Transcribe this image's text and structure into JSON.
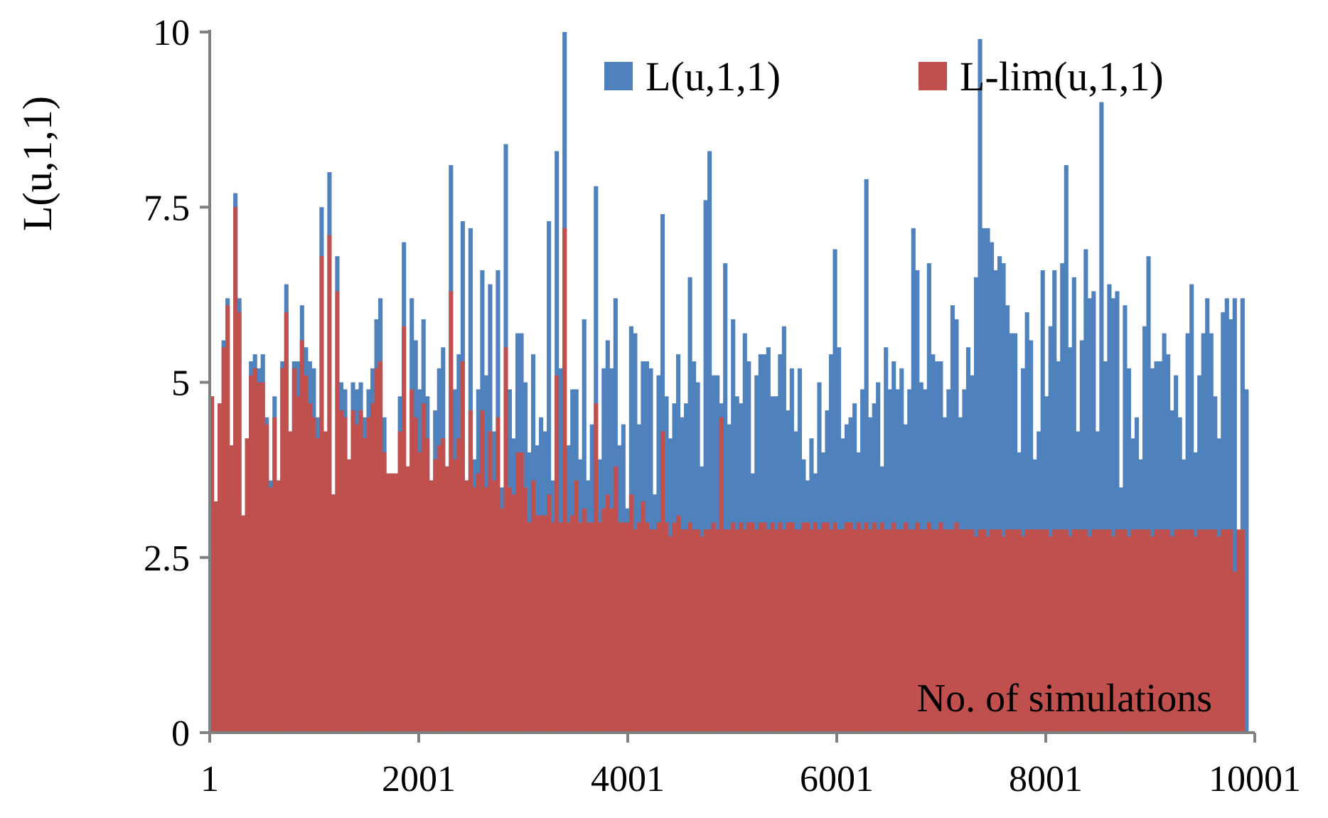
{
  "chart_data": {
    "type": "bar",
    "ylabel": "L(u,1,1)",
    "xlabel": "",
    "annotation": "No. of simulations",
    "ylim": [
      0,
      10
    ],
    "xlim": [
      1,
      10001
    ],
    "yticks": [
      "0",
      "2.5",
      "5",
      "7.5",
      "10"
    ],
    "xticks": [
      "1",
      "2001",
      "4001",
      "6001",
      "8001",
      "10001"
    ],
    "legend_position": "top-right",
    "bar_step": 25,
    "colors": {
      "L": "#4f81bd",
      "L_lim": "#c0504d",
      "axis": "#808080"
    },
    "series": [
      {
        "name": "L(u,1,1)",
        "color": "#4f81bd",
        "values": [
          4.8,
          3.3,
          4.7,
          5.6,
          6.2,
          4.1,
          7.7,
          6.2,
          3.1,
          4.2,
          5.3,
          5.4,
          5.2,
          5.4,
          4.5,
          3.6,
          4.8,
          3.6,
          5.3,
          6.4,
          4.3,
          5.3,
          5.3,
          6.1,
          5.5,
          5.3,
          5.2,
          4.5,
          7.5,
          4.3,
          8.0,
          3.4,
          6.8,
          5.0,
          4.9,
          3.9,
          5.0,
          4.9,
          5.0,
          4.5,
          4.9,
          5.2,
          5.9,
          6.2,
          4.5,
          3.7,
          3.7,
          3.7,
          4.8,
          7.0,
          3.8,
          6.2,
          5.6,
          4.9,
          5.9,
          4.8,
          3.6,
          4.6,
          5.2,
          5.5,
          3.8,
          8.1,
          4.9,
          5.4,
          7.3,
          3.6,
          7.2,
          3.9,
          4.9,
          6.6,
          5.1,
          6.4,
          4.3,
          6.6,
          3.5,
          8.4,
          4.9,
          4.2,
          5.7,
          5.7,
          5.0,
          4.0,
          5.4,
          4.1,
          4.5,
          4.3,
          7.3,
          3.6,
          8.3,
          5.2,
          10.0,
          4.1,
          4.9,
          4.9,
          3.9,
          5.9,
          3.6,
          4.4,
          7.8,
          3.9,
          5.2,
          5.6,
          5.2,
          6.2,
          4.1,
          4.4,
          3.2,
          5.8,
          5.7,
          4.4,
          5.3,
          5.3,
          5.2,
          3.4,
          5.1,
          7.4,
          4.8,
          4.2,
          4.7,
          5.4,
          4.5,
          4.7,
          6.5,
          5.3,
          5.0,
          3.8,
          7.6,
          8.3,
          5.1,
          5.1,
          4.7,
          6.7,
          4.4,
          5.9,
          4.8,
          4.7,
          5.7,
          5.3,
          3.7,
          5.1,
          5.4,
          5.4,
          5.5,
          4.8,
          4.8,
          5.4,
          5.8,
          4.6,
          5.2,
          4.3,
          5.2,
          3.9,
          3.6,
          4.2,
          3.7,
          5.0,
          4.0,
          4.6,
          5.4,
          6.9,
          5.5,
          4.2,
          4.4,
          4.5,
          4.7,
          4.0,
          4.9,
          7.9,
          4.5,
          4.7,
          5.0,
          3.8,
          5.5,
          4.9,
          5.3,
          4.9,
          5.2,
          4.4,
          4.9,
          7.2,
          6.6,
          5.0,
          4.9,
          6.7,
          5.4,
          5.3,
          5.3,
          4.5,
          4.9,
          6.1,
          5.9,
          4.5,
          4.9,
          5.5,
          5.1,
          6.5,
          9.9,
          7.2,
          7.2,
          7.0,
          6.6,
          6.8,
          6.7,
          6.1,
          5.7,
          5.7,
          4.0,
          5.2,
          6.0,
          5.6,
          3.9,
          4.3,
          6.6,
          4.8,
          5.8,
          6.6,
          5.3,
          6.7,
          8.1,
          5.5,
          6.5,
          4.3,
          5.6,
          6.9,
          6.2,
          6.3,
          4.3,
          9.0,
          5.3,
          6.4,
          6.2,
          6.3,
          3.5,
          6.1,
          5.2,
          4.2,
          4.5,
          3.9,
          5.8,
          6.8,
          5.2,
          5.3,
          5.3,
          5.7,
          5.4,
          4.6,
          5.1,
          4.5,
          3.9,
          5.7,
          6.4,
          4.0,
          5.1,
          5.7,
          6.2,
          5.7,
          4.8,
          4.2,
          6.0,
          6.2,
          5.9,
          6.2,
          2.3,
          6.2,
          4.9
        ]
      },
      {
        "name": "L-lim(u,1,1)",
        "color": "#c0504d",
        "values": [
          4.8,
          3.3,
          4.7,
          5.5,
          6.1,
          4.1,
          7.5,
          6.0,
          3.1,
          4.2,
          5.1,
          5.2,
          5.0,
          5.0,
          4.4,
          3.5,
          4.5,
          3.6,
          5.2,
          6.0,
          4.3,
          5.2,
          4.8,
          5.6,
          5.1,
          4.7,
          4.5,
          4.2,
          6.8,
          4.3,
          7.1,
          3.4,
          6.3,
          4.6,
          4.5,
          3.9,
          4.6,
          4.4,
          4.6,
          4.2,
          4.5,
          4.7,
          5.2,
          5.3,
          4.0,
          3.7,
          3.7,
          3.7,
          4.3,
          5.8,
          3.8,
          4.9,
          4.5,
          4.0,
          4.7,
          4.2,
          3.6,
          3.9,
          4.1,
          4.2,
          3.8,
          6.3,
          3.9,
          4.2,
          5.3,
          3.6,
          4.6,
          3.5,
          3.7,
          4.6,
          3.5,
          4.3,
          3.6,
          4.5,
          3.2,
          5.5,
          3.5,
          3.4,
          4.0,
          4.0,
          3.5,
          3.0,
          3.6,
          3.1,
          3.1,
          3.1,
          3.4,
          3.0,
          5.1,
          3.0,
          7.2,
          3.0,
          3.1,
          3.6,
          3.0,
          3.2,
          3.0,
          3.0,
          4.7,
          3.0,
          3.2,
          3.4,
          3.2,
          3.8,
          3.0,
          3.0,
          3.0,
          3.4,
          2.9,
          3.0,
          3.3,
          3.0,
          2.9,
          2.9,
          3.0,
          4.3,
          3.0,
          2.8,
          3.0,
          3.1,
          2.9,
          2.9,
          3.0,
          2.9,
          2.9,
          2.8,
          2.9,
          2.9,
          3.0,
          2.9,
          4.5,
          2.9,
          2.9,
          3.0,
          2.9,
          3.0,
          2.9,
          3.0,
          3.0,
          2.9,
          3.0,
          3.0,
          2.9,
          3.0,
          2.9,
          3.0,
          2.9,
          3.0,
          3.0,
          2.9,
          2.9,
          3.0,
          3.0,
          2.9,
          3.0,
          2.9,
          3.0,
          3.0,
          2.9,
          3.0,
          2.9,
          2.9,
          3.0,
          3.0,
          2.9,
          3.0,
          2.9,
          3.0,
          2.9,
          3.0,
          2.9,
          3.0,
          2.9,
          2.9,
          3.0,
          2.9,
          2.9,
          3.0,
          2.9,
          2.9,
          3.0,
          2.9,
          2.9,
          3.0,
          2.9,
          2.9,
          3.0,
          2.9,
          2.9,
          2.9,
          3.0,
          2.9,
          2.9,
          2.9,
          2.9,
          2.8,
          2.9,
          2.9,
          2.8,
          2.9,
          2.9,
          2.9,
          2.8,
          2.9,
          2.9,
          2.9,
          2.9,
          2.8,
          2.9,
          2.9,
          2.9,
          2.9,
          2.9,
          2.9,
          2.8,
          2.9,
          2.9,
          2.9,
          2.9,
          2.8,
          2.9,
          2.9,
          2.9,
          2.9,
          2.8,
          2.9,
          2.9,
          2.9,
          2.9,
          2.9,
          2.8,
          2.9,
          2.9,
          2.9,
          2.8,
          2.9,
          2.9,
          2.9,
          2.9,
          2.9,
          2.8,
          2.9,
          2.9,
          2.9,
          2.9,
          2.8,
          2.9,
          2.9,
          2.9,
          2.9,
          2.9,
          2.8,
          2.9,
          2.9,
          2.9,
          2.9,
          2.9,
          2.8,
          2.9,
          2.9,
          2.9,
          2.3,
          2.9,
          2.9
        ]
      }
    ]
  }
}
